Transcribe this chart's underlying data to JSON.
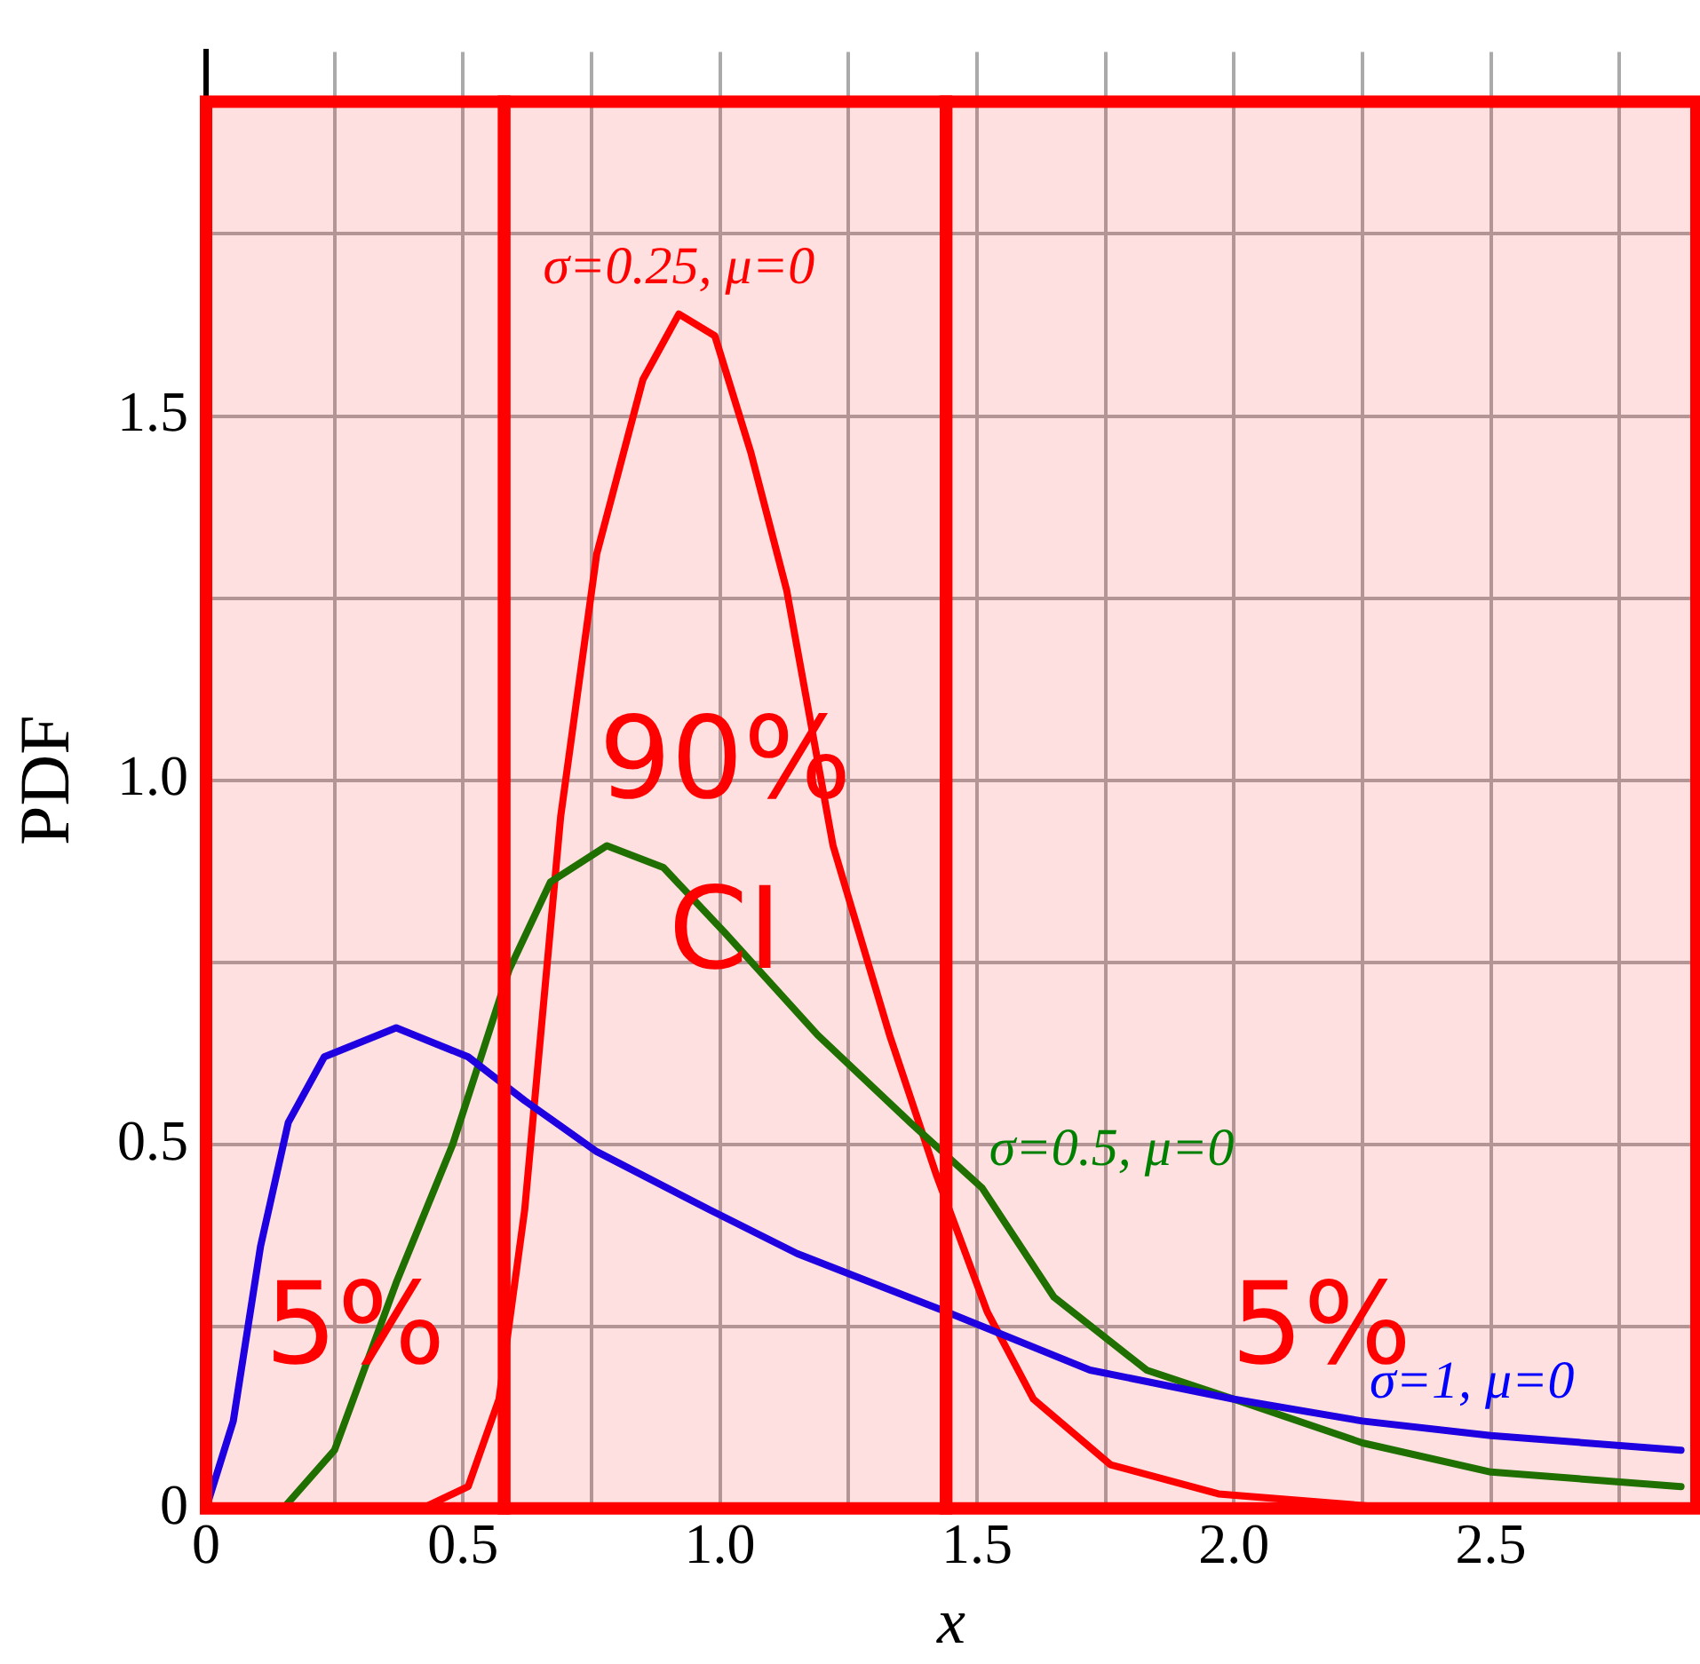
{
  "chart_data": {
    "type": "line",
    "xlabel": "x",
    "ylabel": "PDF",
    "xlim": [
      0,
      2.9
    ],
    "ylim": [
      0,
      2
    ],
    "xticks": [
      0,
      {
        "value": 0.25,
        "label": null
      },
      0.5,
      {
        "value": 0.75,
        "label": null
      },
      {
        "value": 1,
        "label": "1.0"
      },
      {
        "value": 1.25,
        "label": null
      },
      1.5,
      {
        "value": 1.75,
        "label": null
      },
      {
        "value": 2,
        "label": "2.0"
      },
      {
        "value": 2.25,
        "label": null
      },
      2.5,
      {
        "value": 2.75,
        "label": null
      }
    ],
    "yticks": [
      0,
      {
        "value": 0.25,
        "label": null
      },
      0.5,
      {
        "value": 0.75,
        "label": null
      },
      {
        "value": 1,
        "label": "1.0"
      },
      {
        "value": 1.25,
        "label": null
      },
      1.5,
      {
        "value": 1.75,
        "label": null
      }
    ],
    "grid": true,
    "legend": false,
    "marker": "none",
    "line_style": "solid",
    "series": [
      {
        "name": "σ=1, μ=0",
        "color": "#0000ff",
        "x": [
          0,
          0.053,
          0.106,
          0.16,
          0.23,
          0.37,
          0.51,
          0.62,
          0.76,
          0.98,
          1.15,
          1.44,
          1.72,
          2.0,
          2.25,
          2.5,
          2.87
        ],
        "values": [
          0,
          0.12,
          0.36,
          0.53,
          0.62,
          0.66,
          0.62,
          0.56,
          0.49,
          0.41,
          0.35,
          0.27,
          0.19,
          0.15,
          0.12,
          0.1,
          0.08
        ]
      },
      {
        "name": "σ=0.5, μ=0",
        "color": "#008000",
        "x": [
          0,
          0.15,
          0.25,
          0.37,
          0.48,
          0.59,
          0.67,
          0.78,
          0.89,
          1.01,
          1.19,
          1.37,
          1.51,
          1.65,
          1.83,
          2.0,
          2.25,
          2.5,
          2.87
        ],
        "values": [
          0,
          0,
          0.08,
          0.31,
          0.5,
          0.74,
          0.86,
          0.91,
          0.88,
          0.79,
          0.65,
          0.53,
          0.44,
          0.29,
          0.19,
          0.15,
          0.09,
          0.05,
          0.03
        ]
      },
      {
        "name": "σ=0.25, μ=0",
        "color": "#ff0000",
        "x": [
          0,
          0.42,
          0.51,
          0.57,
          0.62,
          0.69,
          0.76,
          0.85,
          0.92,
          0.99,
          1.06,
          1.13,
          1.22,
          1.33,
          1.42,
          1.52,
          1.61,
          1.76,
          1.97,
          2.32,
          2.87
        ],
        "values": [
          0,
          0,
          0.03,
          0.15,
          0.41,
          0.95,
          1.31,
          1.55,
          1.64,
          1.61,
          1.45,
          1.26,
          0.91,
          0.65,
          0.46,
          0.27,
          0.15,
          0.06,
          0.02,
          0,
          0
        ]
      }
    ],
    "bands": [
      {
        "axis": "x",
        "from": 0,
        "to": 0.58,
        "label": "5%",
        "color": "#ff0000"
      },
      {
        "axis": "x",
        "from": 0.58,
        "to": 1.44,
        "label": "90% CI",
        "color": "#ff0000"
      },
      {
        "axis": "x",
        "from": 1.44,
        "to": 2.9,
        "label": "5%",
        "color": "#ff0000"
      }
    ]
  }
}
